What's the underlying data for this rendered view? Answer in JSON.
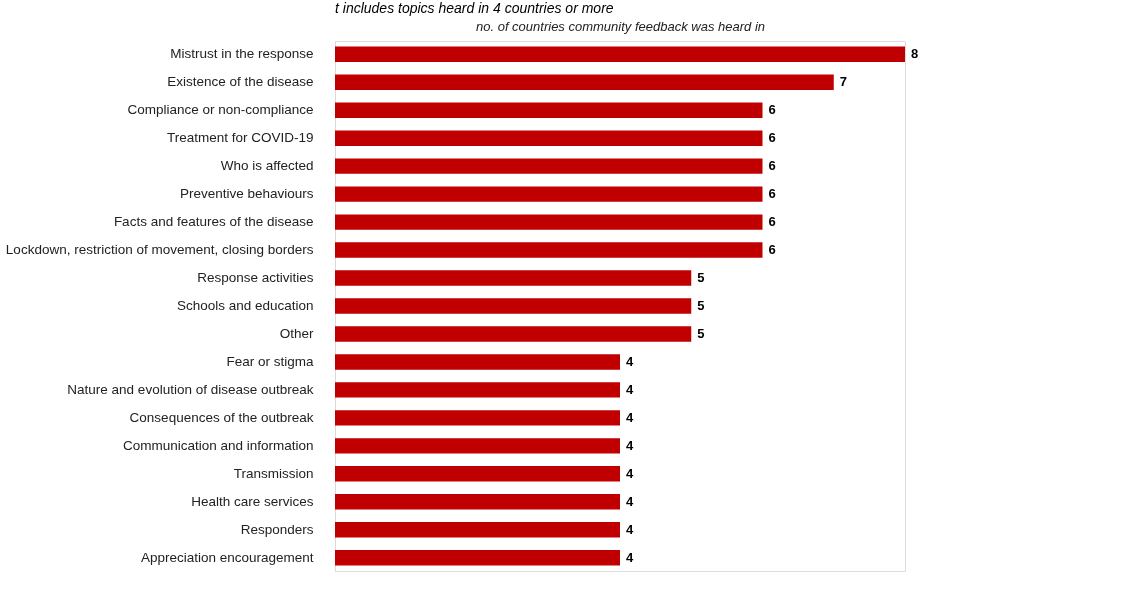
{
  "chart_data": {
    "type": "bar",
    "orientation": "horizontal",
    "title": "t includes topics heard in 4 countries or more",
    "xlabel": "no. of countries community feedback was heard in",
    "categories": [
      "Mistrust in the response",
      "Existence of the disease",
      "Compliance or non-compliance",
      "Treatment for COVID-19",
      "Who is affected",
      "Preventive behaviours",
      "Facts and features of the disease",
      "Lockdown, restriction of movement, closing borders",
      "Response activities",
      "Schools and education",
      "Other",
      "Fear or stigma",
      "Nature and evolution of disease outbreak",
      "Consequences of the outbreak",
      "Communication and information",
      "Transmission",
      "Health care services",
      "Responders",
      "Appreciation  encouragement"
    ],
    "values": [
      8,
      7,
      6,
      6,
      6,
      6,
      6,
      6,
      5,
      5,
      5,
      4,
      4,
      4,
      4,
      4,
      4,
      4,
      4
    ],
    "color": "#c00000",
    "data_labels": true
  }
}
